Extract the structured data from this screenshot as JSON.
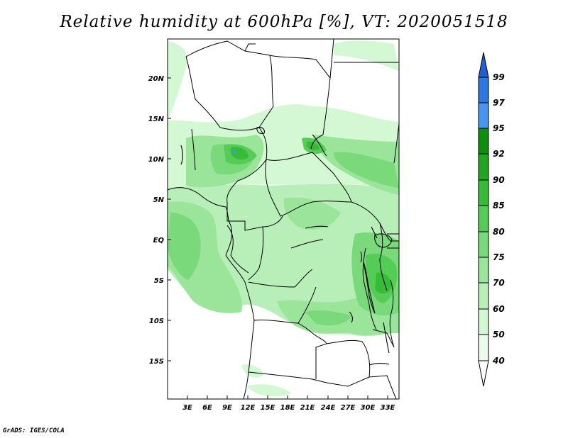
{
  "title": "Relative humidity at 600hPa [%], VT: 2020051518",
  "credit": "GrADS: IGES/COLA",
  "map": {
    "variable": "Relative humidity",
    "level": "600hPa",
    "units": "%",
    "valid_time": "2020051518",
    "lat_labels": [
      "20N",
      "15N",
      "10N",
      "5N",
      "EQ",
      "5S",
      "10S",
      "15S"
    ],
    "lon_labels": [
      "3E",
      "6E",
      "9E",
      "12E",
      "15E",
      "18E",
      "21E",
      "24E",
      "27E",
      "30E",
      "33E"
    ]
  },
  "colorbar": {
    "levels": [
      "99",
      "97",
      "95",
      "92",
      "90",
      "85",
      "80",
      "75",
      "70",
      "60",
      "50",
      "40"
    ],
    "colors": {
      "top": "#1f5fd0",
      "c97": "#2f78e0",
      "c95": "#4896ee",
      "c92": "#0e8f0e",
      "c90": "#22a622",
      "c85": "#38bb38",
      "c80": "#55cc55",
      "c75": "#7ad97a",
      "c70": "#9be59b",
      "c60": "#b8efb8",
      "c50": "#d4f7d4",
      "c40": "#ebfceb",
      "bottom": "#ffffff"
    }
  }
}
